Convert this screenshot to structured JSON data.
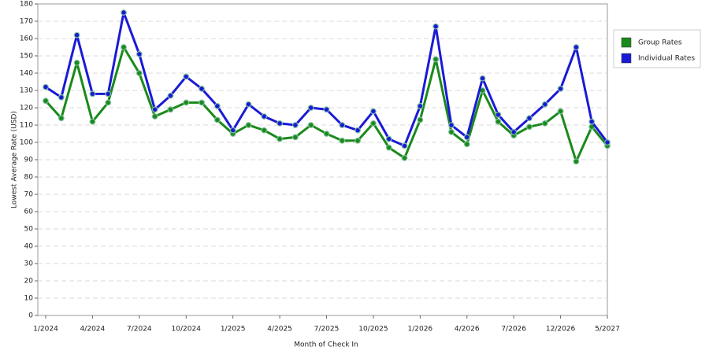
{
  "chart_data": {
    "type": "line",
    "xlabel": "Month of Check In",
    "ylabel": "Lowest Average Rate (USD)",
    "categories": [
      "1/2024",
      null,
      null,
      "4/2024",
      null,
      null,
      "7/2024",
      null,
      null,
      "10/2024",
      null,
      null,
      "1/2025",
      null,
      null,
      "4/2025",
      null,
      null,
      "7/2025",
      null,
      null,
      "10/2025",
      null,
      null,
      "1/2026",
      null,
      null,
      "4/2026",
      null,
      null,
      "7/2026",
      null,
      null,
      "12/2026",
      null,
      null,
      "5/2027"
    ],
    "series": [
      {
        "name": "Group Rates",
        "color": "#1a8a1a",
        "values": [
          124,
          114,
          146,
          112,
          123,
          155,
          140,
          115,
          119,
          123,
          123,
          113,
          105,
          110,
          107,
          102,
          103,
          110,
          105,
          101,
          101,
          111,
          97,
          91,
          113,
          148,
          106,
          99,
          130,
          112,
          104,
          109,
          111,
          118,
          89,
          109,
          98
        ]
      },
      {
        "name": "Individual Rates",
        "color": "#1a1ad6",
        "values": [
          132,
          126,
          162,
          128,
          128,
          175,
          151,
          119,
          127,
          138,
          131,
          121,
          107,
          122,
          115,
          111,
          110,
          120,
          119,
          110,
          107,
          118,
          102,
          98,
          121,
          167,
          110,
          103,
          137,
          116,
          106,
          114,
          122,
          131,
          155,
          112,
          100
        ]
      }
    ],
    "ylim": [
      0,
      180
    ],
    "yticks": [
      0,
      10,
      20,
      30,
      40,
      50,
      60,
      70,
      80,
      90,
      100,
      110,
      120,
      130,
      140,
      150,
      160,
      170,
      180
    ],
    "grid": true
  }
}
